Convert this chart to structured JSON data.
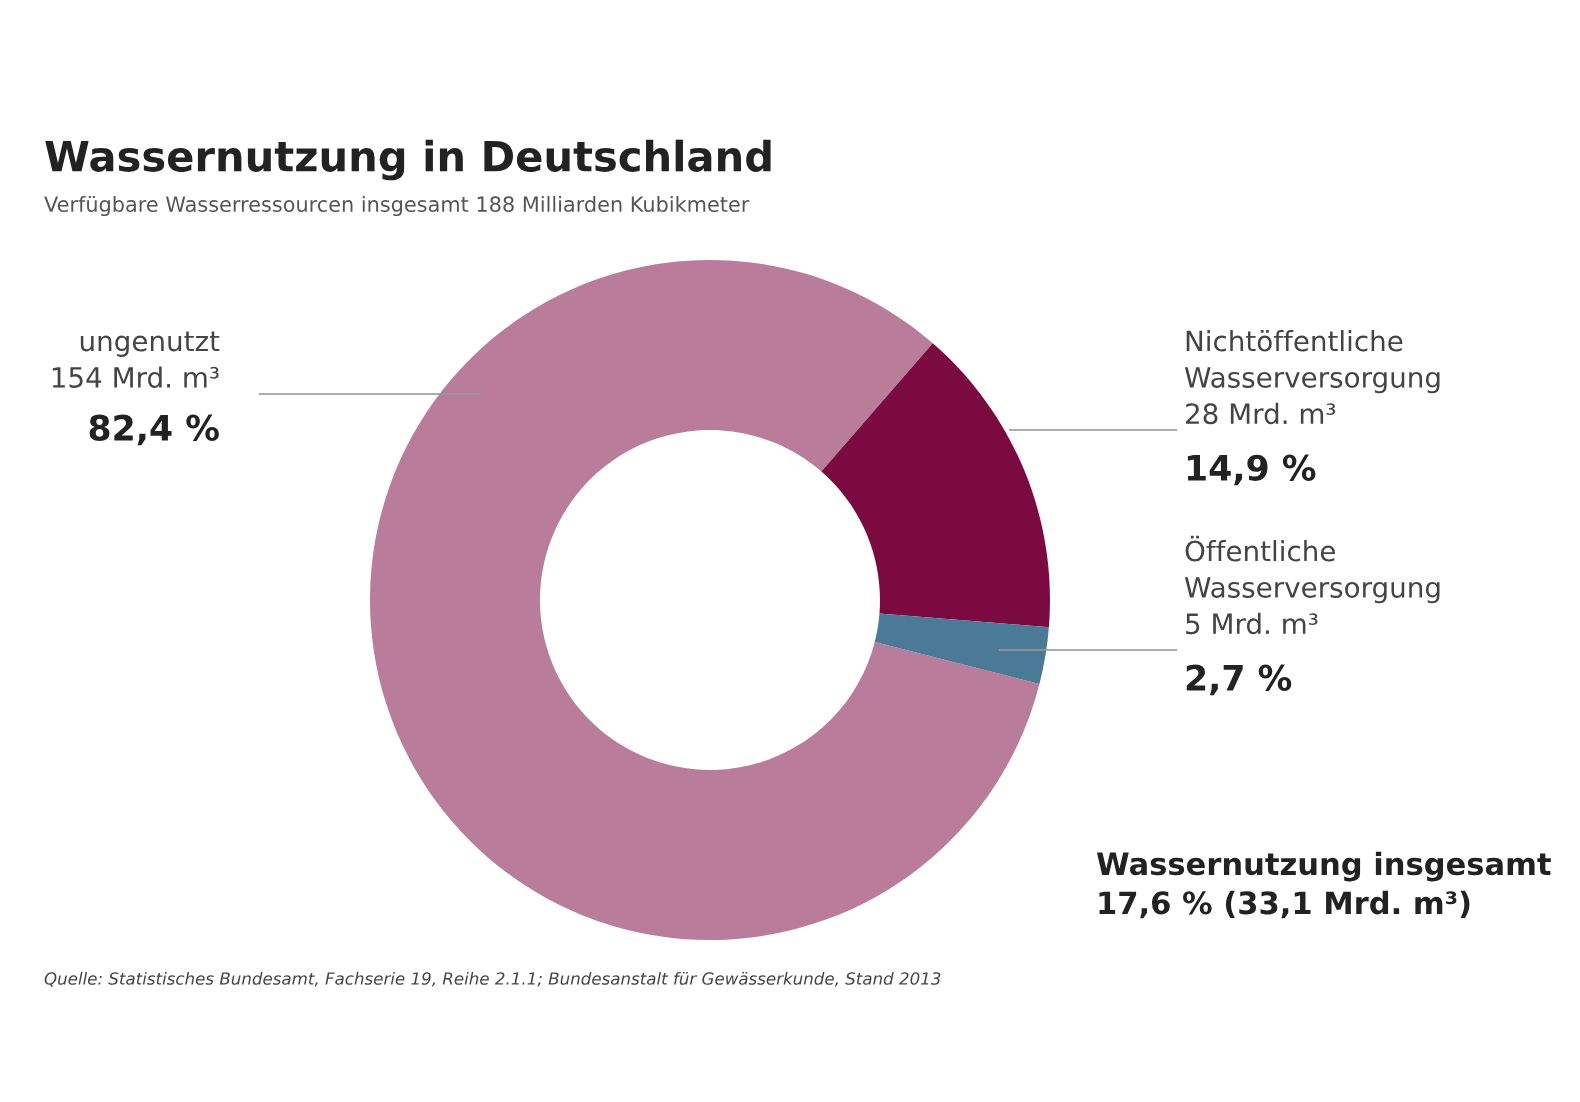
{
  "chart_data": {
    "type": "donut",
    "title": "Wassernutzung in Deutschland",
    "subtitle": "Verfügbare Wasserressourcen insgesamt 188 Milliarden Kubikmeter",
    "categories": [
      "ungenutzt",
      "Nichtöffentliche Wasserversorgung",
      "Öffentliche Wasserversorgung"
    ],
    "values": [
      82.4,
      14.9,
      2.7
    ],
    "colors": [
      "#b97c9b",
      "#7a0a3f",
      "#4a7a96"
    ],
    "value_labels": [
      "154 Mrd. m³\n82,4 %",
      "28 Mrd. m³\n14,9 %",
      "5 Mrd. m³\n2,7 %"
    ],
    "annotations": [
      "Wassernutzung insgesamt\n17,6 % (33,1 Mrd. m³)",
      "Quelle: Statistisches Bundesamt, Fachserie 19, Reihe 2.1.1; Bundesanstalt für Gewässerkunde, Stand 2013"
    ]
  }
}
